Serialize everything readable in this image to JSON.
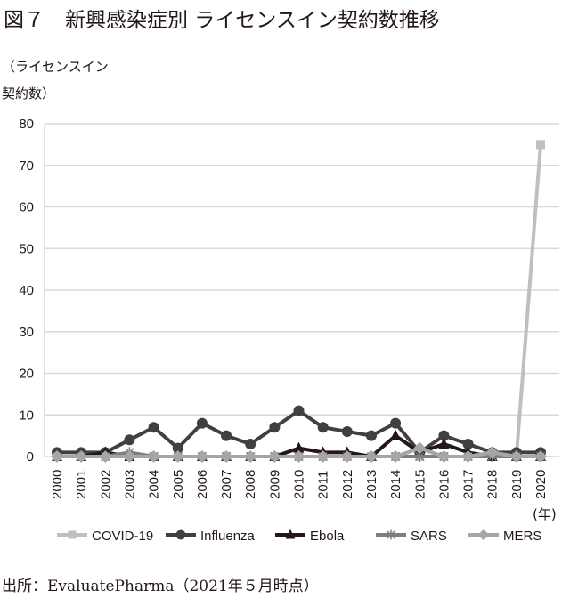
{
  "chart_data": {
    "type": "line",
    "title": "図７　新興感染症別 ライセンスイン契約数推移",
    "ylabel_lines": [
      "（ライセンスイン",
      "契約数）"
    ],
    "xlabel": "(年)",
    "source": "出所：EvaluatePharma（2021年５月時点）",
    "ylim": [
      0,
      80
    ],
    "yticks": [
      0,
      10,
      20,
      30,
      40,
      50,
      60,
      70,
      80
    ],
    "grid": true,
    "legend_position": "bottom",
    "categories": [
      "2000",
      "2001",
      "2002",
      "2003",
      "2004",
      "2005",
      "2006",
      "2007",
      "2008",
      "2009",
      "2010",
      "2011",
      "2012",
      "2013",
      "2014",
      "2015",
      "2016",
      "2017",
      "2018",
      "2019",
      "2020"
    ],
    "series": [
      {
        "name": "COVID-19",
        "color": "#bfbfbf",
        "marker": "square",
        "values": [
          0,
          0,
          0,
          0,
          0,
          0,
          0,
          0,
          0,
          0,
          0,
          0,
          0,
          0,
          0,
          0,
          0,
          0,
          0,
          0,
          75
        ]
      },
      {
        "name": "Influenza",
        "color": "#404040",
        "marker": "circle",
        "values": [
          1,
          1,
          1,
          4,
          7,
          2,
          8,
          5,
          3,
          7,
          11,
          7,
          6,
          5,
          8,
          1,
          5,
          3,
          1,
          1,
          1
        ]
      },
      {
        "name": "Ebola",
        "color": "#231815",
        "marker": "triangle",
        "values": [
          0,
          0,
          1,
          0,
          0,
          0,
          0,
          0,
          0,
          0,
          2,
          1,
          1,
          0,
          5,
          1,
          3,
          1,
          0,
          0,
          0
        ]
      },
      {
        "name": "SARS",
        "color": "#7f7f7f",
        "marker": "asterisk",
        "values": [
          0,
          0,
          0,
          1,
          0,
          0,
          0,
          0,
          0,
          0,
          0,
          0,
          0,
          0,
          0,
          0,
          0,
          0,
          0,
          0,
          0
        ]
      },
      {
        "name": "MERS",
        "color": "#a6a6a6",
        "marker": "diamond",
        "values": [
          0,
          0,
          0,
          0,
          0,
          0,
          0,
          0,
          0,
          0,
          0,
          0,
          0,
          0,
          0,
          2,
          0,
          0,
          1,
          0,
          0
        ]
      }
    ]
  }
}
